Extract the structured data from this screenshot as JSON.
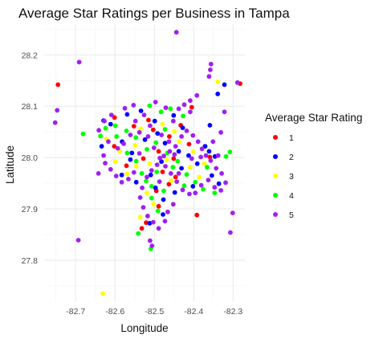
{
  "chart_data": {
    "type": "scatter",
    "title": "Average Star Ratings per Business in Tampa",
    "xlabel": "Longitude",
    "ylabel": "Latitude",
    "xlim": [
      -82.78,
      -82.27
    ],
    "ylim": [
      27.72,
      28.26
    ],
    "x_ticks": [
      -82.7,
      -82.6,
      -82.5,
      -82.4,
      -82.3
    ],
    "x_tick_labels": [
      "-82.7",
      "-82.6",
      "-82.5",
      "-82.4",
      "-82.3"
    ],
    "y_ticks": [
      27.8,
      27.9,
      28.0,
      28.1,
      28.2
    ],
    "y_tick_labels": [
      "27.8",
      "27.9",
      "28.0",
      "28.1",
      "28.2"
    ],
    "grid": true,
    "legend": {
      "title": "Average Star Rating",
      "position": "right",
      "entries": [
        {
          "label": "1",
          "color": "#ff0000"
        },
        {
          "label": "2",
          "color": "#0000ff"
        },
        {
          "label": "3",
          "color": "#ffff00"
        },
        {
          "label": "4",
          "color": "#00ff00"
        },
        {
          "label": "5",
          "color": "#a020f0"
        }
      ]
    },
    "series": [
      {
        "name": "1",
        "color": "#ff0000",
        "points": [
          [
            -82.745,
            28.142
          ],
          [
            -82.601,
            28.078
          ],
          [
            -82.552,
            28.061
          ],
          [
            -82.503,
            28.054
          ],
          [
            -82.489,
            28.012
          ],
          [
            -82.451,
            27.998
          ],
          [
            -82.479,
            27.972
          ],
          [
            -82.528,
            27.998
          ],
          [
            -82.571,
            27.984
          ],
          [
            -82.515,
            28.073
          ],
          [
            -82.462,
            28.041
          ],
          [
            -82.463,
            27.948
          ],
          [
            -82.489,
            27.905
          ],
          [
            -82.532,
            27.862
          ],
          [
            -82.521,
            27.873
          ],
          [
            -82.392,
            27.888
          ],
          [
            -82.282,
            28.144
          ],
          [
            -82.405,
            28.098
          ],
          [
            -82.433,
            28.063
          ],
          [
            -82.602,
            28.022
          ],
          [
            -82.495,
            27.935
          ],
          [
            -82.446,
            27.962
          ],
          [
            -82.359,
            28.001
          ],
          [
            -82.412,
            28.026
          ]
        ]
      },
      {
        "name": "2",
        "color": "#0000ff",
        "points": [
          [
            -82.611,
            28.065
          ],
          [
            -82.634,
            28.022
          ],
          [
            -82.582,
            28.031
          ],
          [
            -82.557,
            28.009
          ],
          [
            -82.524,
            28.035
          ],
          [
            -82.492,
            28.047
          ],
          [
            -82.473,
            28.028
          ],
          [
            -82.438,
            28.012
          ],
          [
            -82.413,
            28.004
          ],
          [
            -82.391,
            27.988
          ],
          [
            -82.354,
            27.965
          ],
          [
            -82.336,
            27.949
          ],
          [
            -82.482,
            27.992
          ],
          [
            -82.509,
            27.966
          ],
          [
            -82.546,
            27.952
          ],
          [
            -82.583,
            27.966
          ],
          [
            -82.497,
            27.941
          ],
          [
            -82.477,
            27.918
          ],
          [
            -82.448,
            27.932
          ],
          [
            -82.402,
            27.944
          ],
          [
            -82.371,
            28.022
          ],
          [
            -82.359,
            28.063
          ],
          [
            -82.339,
            28.124
          ],
          [
            -82.322,
            28.142
          ],
          [
            -82.499,
            28.071
          ],
          [
            -82.534,
            28.091
          ],
          [
            -82.451,
            28.082
          ],
          [
            -82.428,
            28.058
          ],
          [
            -82.361,
            28.012
          ],
          [
            -82.346,
            28.002
          ],
          [
            -82.431,
            27.979
          ],
          [
            -82.561,
            27.996
          ],
          [
            -82.629,
            28.072
          ],
          [
            -82.569,
            28.084
          ],
          [
            -82.478,
            27.889
          ],
          [
            -82.512,
            27.872
          ]
        ]
      },
      {
        "name": "3",
        "color": "#ffff00",
        "points": [
          [
            -82.631,
            27.735
          ],
          [
            -82.622,
            28.036
          ],
          [
            -82.588,
            28.012
          ],
          [
            -82.549,
            28.024
          ],
          [
            -82.512,
            27.988
          ],
          [
            -82.469,
            27.996
          ],
          [
            -82.437,
            28.031
          ],
          [
            -82.409,
            27.981
          ],
          [
            -82.386,
            27.962
          ],
          [
            -82.519,
            27.931
          ],
          [
            -82.502,
            27.909
          ],
          [
            -82.536,
            27.884
          ],
          [
            -82.457,
            27.955
          ],
          [
            -82.569,
            27.968
          ],
          [
            -82.535,
            28.056
          ],
          [
            -82.479,
            28.065
          ],
          [
            -82.339,
            28.148
          ],
          [
            -82.373,
            27.988
          ],
          [
            -82.449,
            28.051
          ],
          [
            -82.599,
            27.992
          ],
          [
            -82.546,
            27.983
          ],
          [
            -82.401,
            28.011
          ]
        ]
      },
      {
        "name": "4",
        "color": "#00ff00",
        "points": [
          [
            -82.681,
            28.046
          ],
          [
            -82.624,
            28.057
          ],
          [
            -82.596,
            28.041
          ],
          [
            -82.571,
            28.052
          ],
          [
            -82.547,
            28.039
          ],
          [
            -82.519,
            28.016
          ],
          [
            -82.496,
            28.029
          ],
          [
            -82.467,
            28.009
          ],
          [
            -82.441,
            27.993
          ],
          [
            -82.418,
            27.967
          ],
          [
            -82.396,
            27.952
          ],
          [
            -82.376,
            27.938
          ],
          [
            -82.347,
            27.931
          ],
          [
            -82.521,
            27.954
          ],
          [
            -82.494,
            27.972
          ],
          [
            -82.532,
            27.969
          ],
          [
            -82.507,
            27.921
          ],
          [
            -82.491,
            27.896
          ],
          [
            -82.541,
            27.852
          ],
          [
            -82.509,
            27.822
          ],
          [
            -82.308,
            28.011
          ],
          [
            -82.318,
            28.002
          ],
          [
            -82.483,
            28.089
          ],
          [
            -82.512,
            28.101
          ],
          [
            -82.459,
            28.095
          ],
          [
            -82.427,
            28.081
          ],
          [
            -82.569,
            28.009
          ],
          [
            -82.599,
            28.062
          ],
          [
            -82.473,
            28.055
          ],
          [
            -82.424,
            27.945
          ],
          [
            -82.366,
            27.981
          ],
          [
            -82.453,
            27.981
          ],
          [
            -82.546,
            27.993
          ],
          [
            -82.637,
            28.042
          ],
          [
            -82.507,
            27.944
          ],
          [
            -82.476,
            27.935
          ]
        ]
      },
      {
        "name": "5",
        "color": "#a020f0",
        "points": [
          [
            -82.444,
            28.244
          ],
          [
            -82.691,
            28.186
          ],
          [
            -82.747,
            28.092
          ],
          [
            -82.752,
            28.068
          ],
          [
            -82.693,
            27.839
          ],
          [
            -82.642,
            27.969
          ],
          [
            -82.301,
            27.892
          ],
          [
            -82.307,
            27.854
          ],
          [
            -82.506,
            27.828
          ],
          [
            -82.511,
            27.838
          ],
          [
            -82.356,
            28.182
          ],
          [
            -82.358,
            28.171
          ],
          [
            -82.361,
            28.158
          ],
          [
            -82.392,
            28.121
          ],
          [
            -82.409,
            28.111
          ],
          [
            -82.424,
            28.103
          ],
          [
            -82.438,
            28.095
          ],
          [
            -82.471,
            28.097
          ],
          [
            -82.497,
            28.108
          ],
          [
            -82.553,
            28.102
          ],
          [
            -82.575,
            28.096
          ],
          [
            -82.609,
            28.083
          ],
          [
            -82.627,
            28.071
          ],
          [
            -82.641,
            28.053
          ],
          [
            -82.617,
            28.031
          ],
          [
            -82.593,
            28.018
          ],
          [
            -82.578,
            28.027
          ],
          [
            -82.561,
            28.044
          ],
          [
            -82.538,
            28.049
          ],
          [
            -82.516,
            28.041
          ],
          [
            -82.501,
            28.019
          ],
          [
            -82.486,
            27.999
          ],
          [
            -82.472,
            27.983
          ],
          [
            -82.458,
            27.969
          ],
          [
            -82.443,
            27.953
          ],
          [
            -82.428,
            27.937
          ],
          [
            -82.411,
            27.929
          ],
          [
            -82.396,
            27.931
          ],
          [
            -82.381,
            27.946
          ],
          [
            -82.363,
            27.956
          ],
          [
            -82.347,
            27.942
          ],
          [
            -82.331,
            27.936
          ],
          [
            -82.319,
            27.951
          ],
          [
            -82.329,
            27.969
          ],
          [
            -82.343,
            27.979
          ],
          [
            -82.357,
            27.994
          ],
          [
            -82.369,
            28.004
          ],
          [
            -82.379,
            28.017
          ],
          [
            -82.389,
            28.031
          ],
          [
            -82.402,
            28.043
          ],
          [
            -82.418,
            28.052
          ],
          [
            -82.431,
            28.041
          ],
          [
            -82.446,
            28.022
          ],
          [
            -82.461,
            28.012
          ],
          [
            -82.476,
            28.003
          ],
          [
            -82.493,
            27.986
          ],
          [
            -82.507,
            27.975
          ],
          [
            -82.519,
            27.962
          ],
          [
            -82.531,
            27.941
          ],
          [
            -82.536,
            27.922
          ],
          [
            -82.528,
            27.903
          ],
          [
            -82.517,
            27.886
          ],
          [
            -82.503,
            27.874
          ],
          [
            -82.489,
            27.862
          ],
          [
            -82.473,
            27.876
          ],
          [
            -82.466,
            27.894
          ],
          [
            -82.452,
            27.909
          ],
          [
            -82.552,
            27.971
          ],
          [
            -82.566,
            27.958
          ],
          [
            -82.583,
            27.952
          ],
          [
            -82.597,
            27.964
          ],
          [
            -82.611,
            27.977
          ],
          [
            -82.625,
            27.989
          ],
          [
            -82.629,
            28.004
          ],
          [
            -82.548,
            28.071
          ],
          [
            -82.526,
            28.083
          ],
          [
            -82.511,
            28.062
          ],
          [
            -82.482,
            28.044
          ],
          [
            -82.463,
            28.031
          ],
          [
            -82.449,
            28.006
          ],
          [
            -82.338,
            28.004
          ],
          [
            -82.351,
            28.031
          ],
          [
            -82.331,
            28.049
          ],
          [
            -82.322,
            28.089
          ],
          [
            -82.289,
            28.146
          ],
          [
            -82.409,
            28.089
          ],
          [
            -82.382,
            28.001
          ],
          [
            -82.452,
            28.071
          ],
          [
            -82.538,
            28.008
          ],
          [
            -82.487,
            27.953
          ],
          [
            -82.438,
            27.969
          ],
          [
            -82.405,
            27.998
          ]
        ]
      }
    ]
  }
}
